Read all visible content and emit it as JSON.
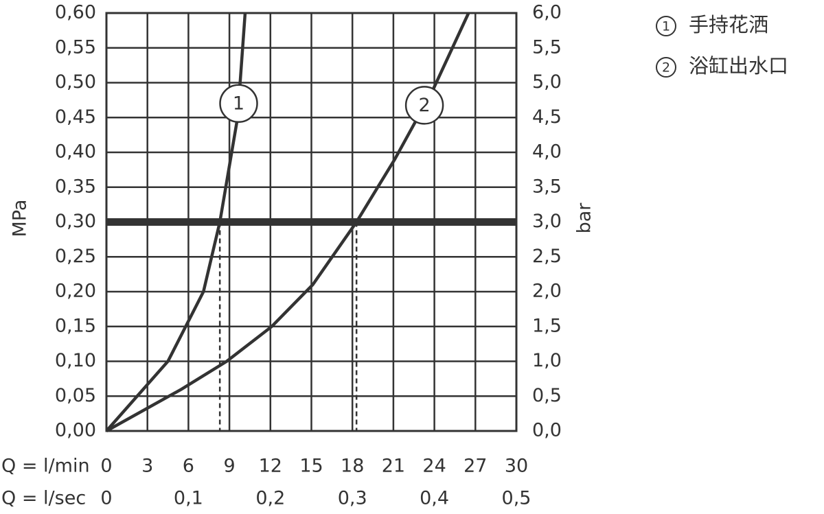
{
  "chart_data": {
    "type": "line",
    "xlabel": "Q = l/min",
    "x2label": "Q = l/sec",
    "ylabel": "MPa",
    "y2label": "bar",
    "xlim": [
      0,
      30
    ],
    "xticks": [
      0,
      3,
      6,
      9,
      12,
      15,
      18,
      21,
      24,
      27,
      30
    ],
    "x2lim": [
      0,
      0.5
    ],
    "x2ticks": [
      0,
      {
        "value": 0.1,
        "label": "0,1"
      },
      {
        "value": 0.2,
        "label": "0,2"
      },
      {
        "value": 0.3,
        "label": "0,3"
      },
      {
        "value": 0.4,
        "label": "0,4"
      },
      {
        "value": 0.5,
        "label": "0,5"
      }
    ],
    "ylim": [
      0,
      0.6
    ],
    "yticks": [
      {
        "value": 0,
        "label": "0,00"
      },
      {
        "value": 0.05,
        "label": "0,05"
      },
      {
        "value": 0.1,
        "label": "0,10"
      },
      {
        "value": 0.15,
        "label": "0,15"
      },
      {
        "value": 0.2,
        "label": "0,20"
      },
      {
        "value": 0.25,
        "label": "0,25"
      },
      {
        "value": 0.3,
        "label": "0,30"
      },
      {
        "value": 0.35,
        "label": "0,35"
      },
      {
        "value": 0.4,
        "label": "0,40"
      },
      {
        "value": 0.45,
        "label": "0,45"
      },
      {
        "value": 0.5,
        "label": "0,50"
      },
      {
        "value": 0.55,
        "label": "0,55"
      },
      {
        "value": 0.6,
        "label": "0,60"
      }
    ],
    "y2lim": [
      0,
      6
    ],
    "y2ticks": [
      {
        "value": 0,
        "label": "0,0"
      },
      {
        "value": 0.5,
        "label": "0,5"
      },
      {
        "value": 1,
        "label": "1,0"
      },
      {
        "value": 1.5,
        "label": "1,5"
      },
      {
        "value": 2,
        "label": "2,0"
      },
      {
        "value": 2.5,
        "label": "2,5"
      },
      {
        "value": 3,
        "label": "3,0"
      },
      {
        "value": 3.5,
        "label": "3,5"
      },
      {
        "value": 4,
        "label": "4,0"
      },
      {
        "value": 4.5,
        "label": "4,5"
      },
      {
        "value": 5,
        "label": "5,0"
      },
      {
        "value": 5.5,
        "label": "5,5"
      },
      {
        "value": 6,
        "label": "6,0"
      }
    ],
    "grid": true,
    "reference_y": 0.3,
    "reference_x": [
      8.3,
      18.3
    ],
    "series": [
      {
        "name": "手持花洒",
        "marker": "1",
        "color": "#333333",
        "x": [
          0,
          4.5,
          7.1,
          8.3,
          9.6,
          10.15
        ],
        "values": [
          0,
          0.1,
          0.2,
          0.3,
          0.45,
          0.6
        ]
      },
      {
        "name": "浴缸出水口",
        "marker": "2",
        "color": "#333333",
        "x": [
          0,
          5.5,
          8.8,
          12.1,
          15.1,
          18.3,
          21.1,
          23.9,
          26.5
        ],
        "values": [
          0,
          0.06,
          0.1,
          0.15,
          0.21,
          0.3,
          0.39,
          0.49,
          0.6
        ]
      }
    ]
  }
}
